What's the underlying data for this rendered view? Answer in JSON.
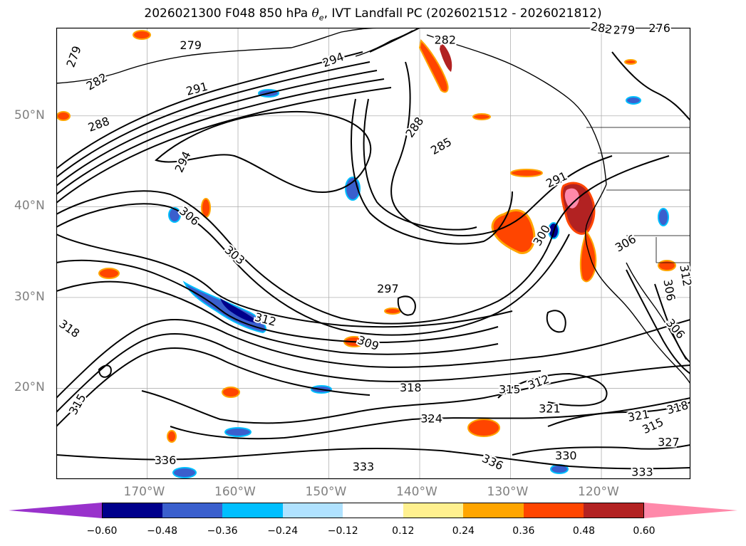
{
  "title": {
    "prefix": "2026021300 F048 850 hPa ",
    "symbol": "θ",
    "subscript": "e",
    "suffix": ", IVT Landfall PC (2026021512 - 2026021812)"
  },
  "chart_data": {
    "type": "contour-map",
    "title": "2026021300 F048 850 hPa θe, IVT Landfall PC (2026021512 - 2026021812)",
    "lon_range": [
      -180,
      -110.2
    ],
    "lat_range": [
      10,
      59.7
    ],
    "lat_ticks": [
      {
        "label": "50°N",
        "value": 50
      },
      {
        "label": "40°N",
        "value": 40
      },
      {
        "label": "30°N",
        "value": 30
      },
      {
        "label": "20°N",
        "value": 20
      }
    ],
    "lon_ticks": [
      {
        "label": "170°W",
        "value": -170
      },
      {
        "label": "160°W",
        "value": -160
      },
      {
        "label": "150°W",
        "value": -150
      },
      {
        "label": "140°W",
        "value": -140
      },
      {
        "label": "130°W",
        "value": -130
      },
      {
        "label": "120°W",
        "value": -120
      }
    ],
    "grid": true,
    "contour_labels": [
      {
        "text": "279",
        "lon": -178.0,
        "lat": 56.5,
        "rot": -70
      },
      {
        "text": "279",
        "lon": -165.2,
        "lat": 57.7,
        "rot": 0
      },
      {
        "text": "282",
        "lon": -175.5,
        "lat": 53.7,
        "rot": -30
      },
      {
        "text": "291",
        "lon": -164.5,
        "lat": 52.9,
        "rot": -15
      },
      {
        "text": "294",
        "lon": -149.5,
        "lat": 56.1,
        "rot": -20
      },
      {
        "text": "288",
        "lon": -175.3,
        "lat": 49.0,
        "rot": -20
      },
      {
        "text": "294",
        "lon": -166.0,
        "lat": 44.9,
        "rot": -65
      },
      {
        "text": "288",
        "lon": -140.5,
        "lat": 48.7,
        "rot": -55
      },
      {
        "text": "285",
        "lon": -137.6,
        "lat": 46.6,
        "rot": -30
      },
      {
        "text": "282",
        "lon": -137.2,
        "lat": 58.3,
        "rot": 0
      },
      {
        "text": "282",
        "lon": -120.0,
        "lat": 59.6,
        "rot": 10
      },
      {
        "text": "279",
        "lon": -117.5,
        "lat": 59.4,
        "rot": 0
      },
      {
        "text": "276",
        "lon": -113.6,
        "lat": 59.6,
        "rot": 0
      },
      {
        "text": "291",
        "lon": -124.9,
        "lat": 42.9,
        "rot": -25
      },
      {
        "text": "306",
        "lon": -165.4,
        "lat": 38.9,
        "rot": 40
      },
      {
        "text": "303",
        "lon": -160.4,
        "lat": 34.6,
        "rot": 40
      },
      {
        "text": "300",
        "lon": -126.5,
        "lat": 36.8,
        "rot": -60
      },
      {
        "text": "306",
        "lon": -117.3,
        "lat": 35.9,
        "rot": -30
      },
      {
        "text": "297",
        "lon": -143.5,
        "lat": 30.9,
        "rot": 0
      },
      {
        "text": "312",
        "lon": -157.0,
        "lat": 27.5,
        "rot": 15
      },
      {
        "text": "309",
        "lon": -145.7,
        "lat": 24.9,
        "rot": 20
      },
      {
        "text": "318",
        "lon": -178.6,
        "lat": 26.5,
        "rot": 35
      },
      {
        "text": "306",
        "lon": -112.6,
        "lat": 30.8,
        "rot": 80
      },
      {
        "text": "312",
        "lon": -110.8,
        "lat": 32.4,
        "rot": 80
      },
      {
        "text": "306",
        "lon": -111.9,
        "lat": 26.5,
        "rot": 50
      },
      {
        "text": "318",
        "lon": -141.0,
        "lat": 20.0,
        "rot": 0
      },
      {
        "text": "315",
        "lon": -130.1,
        "lat": 19.8,
        "rot": 0
      },
      {
        "text": "312",
        "lon": -126.9,
        "lat": 20.6,
        "rot": -20
      },
      {
        "text": "324",
        "lon": -138.7,
        "lat": 16.6,
        "rot": 0
      },
      {
        "text": "321",
        "lon": -125.7,
        "lat": 17.7,
        "rot": 0
      },
      {
        "text": "321",
        "lon": -115.9,
        "lat": 16.9,
        "rot": -10
      },
      {
        "text": "318",
        "lon": -111.6,
        "lat": 17.8,
        "rot": -15
      },
      {
        "text": "315",
        "lon": -114.3,
        "lat": 15.8,
        "rot": -25
      },
      {
        "text": "315",
        "lon": -177.6,
        "lat": 18.2,
        "rot": -60
      },
      {
        "text": "327",
        "lon": -112.6,
        "lat": 14.0,
        "rot": 0
      },
      {
        "text": "330",
        "lon": -123.9,
        "lat": 12.5,
        "rot": 0
      },
      {
        "text": "336",
        "lon": -168.0,
        "lat": 12.0,
        "rot": 0
      },
      {
        "text": "333",
        "lon": -146.2,
        "lat": 11.3,
        "rot": 0
      },
      {
        "text": "336",
        "lon": -132.0,
        "lat": 11.8,
        "rot": 25
      },
      {
        "text": "333",
        "lon": -115.5,
        "lat": 10.7,
        "rot": 0
      }
    ],
    "colorbar": {
      "levels": [
        -0.6,
        -0.48,
        -0.36,
        -0.24,
        -0.12,
        0.12,
        0.24,
        0.36,
        0.48,
        0.6
      ],
      "ticks": [
        "−0.60",
        "−0.48",
        "−0.36",
        "−0.24",
        "−0.12",
        "0.12",
        "0.24",
        "0.36",
        "0.48",
        "0.60"
      ],
      "colors": [
        "#9932cc",
        "#00008b",
        "#3a5fcd",
        "#00bfff",
        "#b0e2ff",
        "#ffffff",
        "#fff08f",
        "#ffa500",
        "#ff4500",
        "#b22222",
        "#ff89aa"
      ],
      "extend": "both"
    }
  }
}
